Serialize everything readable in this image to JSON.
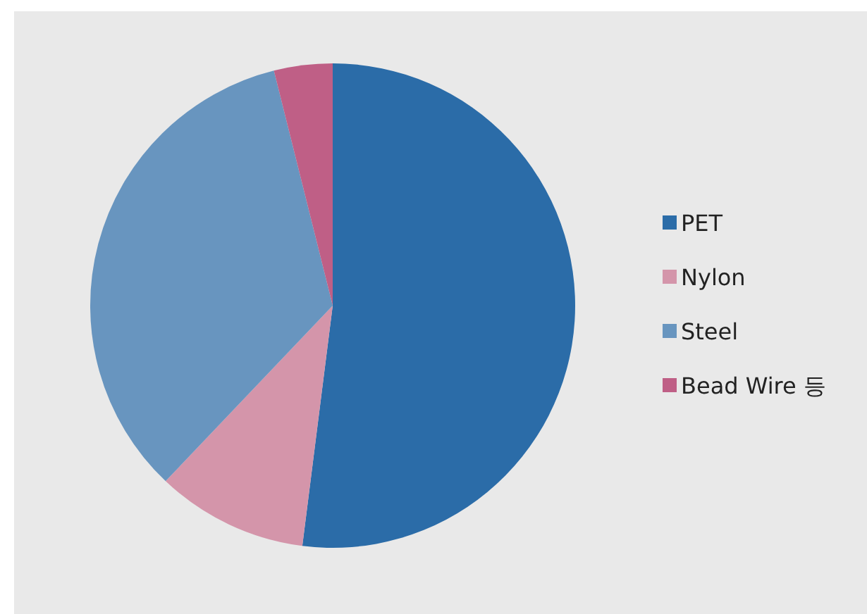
{
  "chart_data": {
    "type": "pie",
    "categories": [
      "PET",
      "Nylon",
      "Steel",
      "Bead Wire 등"
    ],
    "values": [
      52,
      10.1,
      34,
      3.9
    ],
    "colors": [
      "#2b6ca8",
      "#d495aa",
      "#6895bf",
      "#bf5f86"
    ],
    "legend": "right"
  }
}
